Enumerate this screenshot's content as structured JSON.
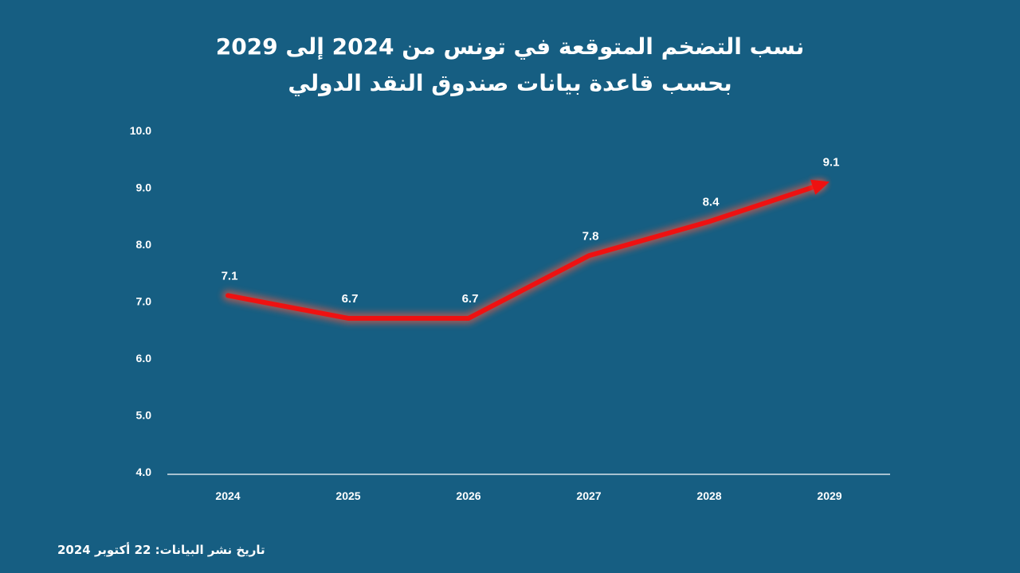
{
  "title": {
    "line1": "نسب التضخم المتوقعة في تونس من 2024 إلى 2029",
    "line2": "بحسب قاعدة بيانات صندوق النقد الدولي"
  },
  "footnote": "تاريخ نشر البيانات: 22 أكتوبر 2024",
  "colors": {
    "background": "#165e82",
    "line": "#ee1111",
    "glow": "#ff5a3c",
    "text": "#ffffff"
  },
  "chart_data": {
    "type": "line",
    "categories": [
      "2024",
      "2025",
      "2026",
      "2027",
      "2028",
      "2029"
    ],
    "values": [
      7.1,
      6.7,
      6.7,
      7.8,
      8.4,
      9.1
    ],
    "data_labels": [
      "7.1",
      "6.7",
      "6.7",
      "7.8",
      "8.4",
      "9.1"
    ],
    "yticks": [
      "10.0",
      "9.0",
      "8.0",
      "7.0",
      "6.0",
      "5.0",
      "4.0"
    ],
    "ylim": [
      4,
      10
    ],
    "grid": false,
    "drop_lines": true,
    "arrow_end": true
  }
}
